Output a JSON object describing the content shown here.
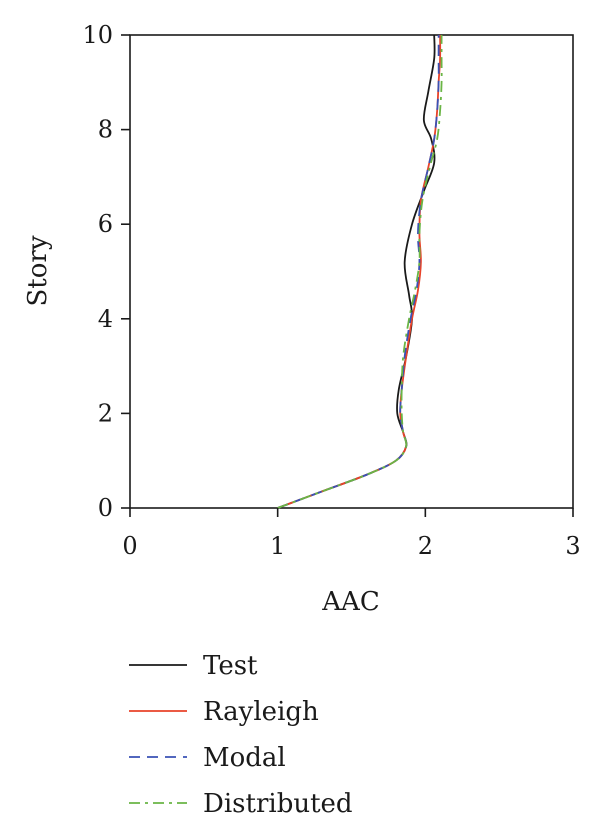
{
  "chart_data": {
    "type": "line",
    "xlabel": "AAC",
    "ylabel": "Story",
    "xlim": [
      0,
      3
    ],
    "ylim": [
      0,
      10
    ],
    "xticks": [
      "0",
      "1",
      "2",
      "3"
    ],
    "yticks": [
      "0",
      "2",
      "4",
      "6",
      "8",
      "10"
    ],
    "grid": false,
    "legend_position": "bottom",
    "series": [
      {
        "name": "Test",
        "color": "#1a1a1a",
        "dash": "solid",
        "x": [
          1.0,
          1.3,
          1.6,
          1.8,
          1.87,
          1.85,
          1.81,
          1.82,
          1.87,
          1.91,
          1.89,
          1.86,
          1.91,
          1.99,
          2.06,
          2.04,
          1.99,
          2.02,
          2.06,
          2.06
        ],
        "y": [
          0.0,
          0.35,
          0.7,
          1.0,
          1.3,
          1.6,
          2.0,
          2.5,
          3.2,
          4.0,
          4.5,
          5.2,
          6.0,
          6.7,
          7.3,
          7.8,
          8.2,
          8.8,
          9.5,
          10.0
        ]
      },
      {
        "name": "Rayleigh",
        "color": "#e8432a",
        "dash": "solid",
        "x": [
          1.0,
          1.3,
          1.6,
          1.8,
          1.87,
          1.85,
          1.83,
          1.84,
          1.87,
          1.91,
          1.95,
          1.97,
          1.96,
          1.97,
          2.02,
          2.06,
          2.08,
          2.09,
          2.1,
          2.1
        ],
        "y": [
          0.0,
          0.35,
          0.7,
          1.0,
          1.3,
          1.6,
          2.0,
          2.5,
          3.2,
          4.0,
          4.6,
          5.2,
          5.8,
          6.5,
          7.2,
          7.8,
          8.4,
          9.0,
          9.5,
          10.0
        ]
      },
      {
        "name": "Modal",
        "color": "#3a52b5",
        "dash": "dashed",
        "x": [
          1.0,
          1.3,
          1.6,
          1.8,
          1.87,
          1.85,
          1.83,
          1.84,
          1.86,
          1.9,
          1.94,
          1.96,
          1.95,
          1.97,
          2.02,
          2.06,
          2.08,
          2.09,
          2.09,
          2.09
        ],
        "y": [
          0.0,
          0.35,
          0.7,
          1.0,
          1.3,
          1.6,
          2.0,
          2.5,
          3.2,
          4.0,
          4.6,
          5.2,
          5.8,
          6.5,
          7.2,
          7.8,
          8.4,
          9.0,
          9.5,
          10.0
        ]
      },
      {
        "name": "Distributed",
        "color": "#6ab545",
        "dash": "dashdot",
        "x": [
          1.0,
          1.3,
          1.6,
          1.8,
          1.87,
          1.85,
          1.84,
          1.84,
          1.85,
          1.89,
          1.93,
          1.96,
          1.96,
          1.98,
          2.03,
          2.08,
          2.1,
          2.11,
          2.11,
          2.11
        ],
        "y": [
          0.0,
          0.35,
          0.7,
          1.0,
          1.3,
          1.6,
          2.0,
          2.5,
          3.2,
          4.0,
          4.6,
          5.2,
          5.8,
          6.5,
          7.2,
          7.8,
          8.4,
          9.0,
          9.5,
          10.0
        ]
      }
    ]
  }
}
